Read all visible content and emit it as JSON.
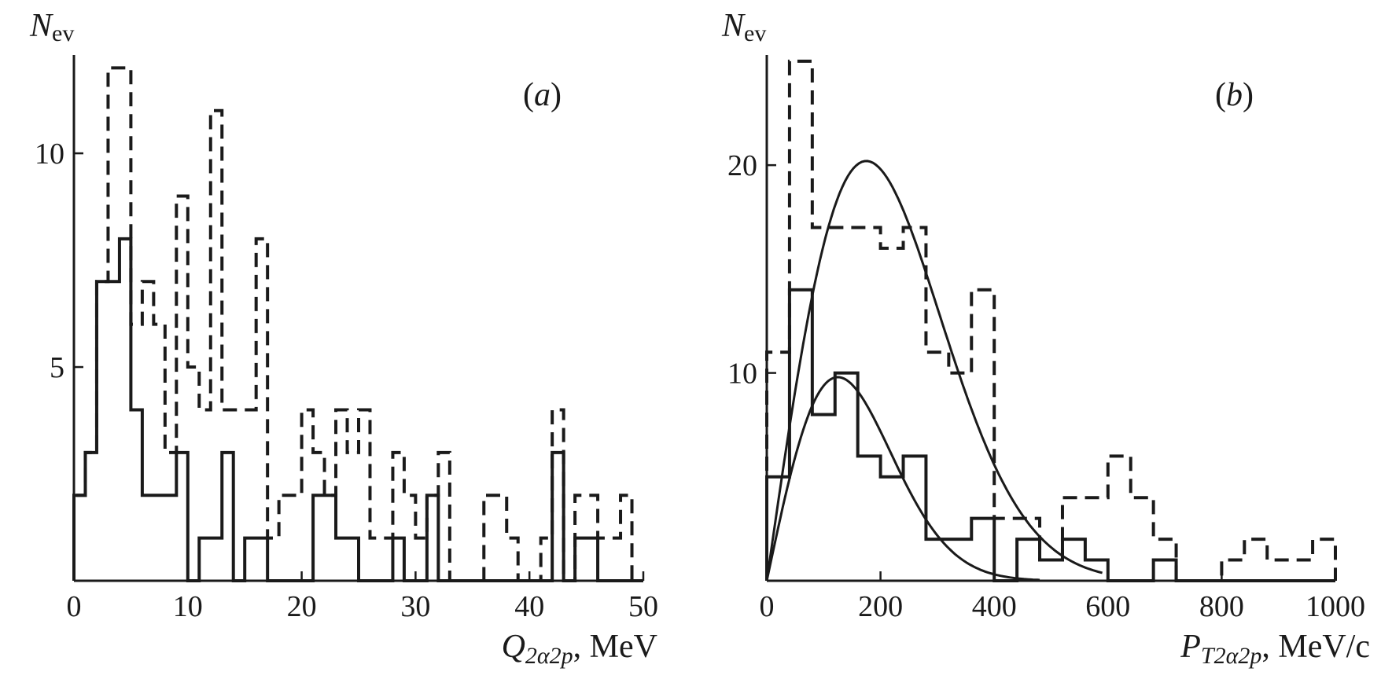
{
  "chart_data": [
    {
      "type": "histogram",
      "panel_label": "(a)",
      "panel_letter": "a",
      "ylabel_main": "N",
      "ylabel_sub": "ev",
      "xlabel_main": "Q",
      "xlabel_sub": "2α2p",
      "xlabel_unit": ", MeV",
      "xlim": [
        0,
        50
      ],
      "ylim": [
        0,
        12.3
      ],
      "xticks": [
        0,
        10,
        20,
        30,
        40,
        50
      ],
      "yticks": [
        5,
        10
      ],
      "bin_width": 1.0,
      "series": [
        {
          "name": "solid",
          "style": "solid",
          "x_start": 0,
          "values": [
            2,
            3,
            7,
            7,
            8,
            4,
            2,
            2,
            2,
            3,
            0,
            1,
            1,
            3,
            0,
            1,
            1,
            0,
            0,
            0,
            0,
            2,
            2,
            1,
            1,
            0,
            0,
            0,
            1,
            0,
            0,
            2,
            0,
            0,
            0,
            0,
            0,
            0,
            0,
            0,
            0,
            0,
            3,
            0,
            1,
            1,
            0,
            0,
            0,
            0
          ]
        },
        {
          "name": "dashed",
          "style": "dashed",
          "x_start": 0,
          "values": [
            2,
            3,
            7,
            12,
            12,
            6,
            7,
            6,
            3,
            9,
            5,
            4,
            11,
            4,
            4,
            4,
            8,
            1,
            2,
            2,
            4,
            3,
            2,
            4,
            3,
            4,
            1,
            1,
            3,
            2,
            1,
            2,
            3,
            0,
            0,
            0,
            2,
            2,
            1,
            0,
            0,
            1,
            4,
            0,
            2,
            2,
            1,
            1,
            2,
            0
          ]
        }
      ]
    },
    {
      "type": "histogram",
      "panel_label": "(b)",
      "panel_letter": "b",
      "ylabel_main": "N",
      "ylabel_sub": "ev",
      "xlabel_main": "P",
      "xlabel_sub": "T2α2p",
      "xlabel_unit": ", MeV/c",
      "xlim": [
        0,
        1000
      ],
      "ylim": [
        0,
        25.3
      ],
      "xticks": [
        0,
        200,
        400,
        600,
        800,
        1000
      ],
      "yticks": [
        10,
        20
      ],
      "bin_width": 40,
      "series": [
        {
          "name": "solid",
          "style": "solid",
          "x_start": 0,
          "values": [
            5,
            14,
            8,
            10,
            6,
            5,
            6,
            2,
            2,
            3,
            0,
            2,
            1,
            2,
            1,
            0,
            0,
            1,
            0,
            0,
            0,
            0,
            0,
            0,
            0
          ]
        },
        {
          "name": "dashed",
          "style": "dashed",
          "x_start": 0,
          "values": [
            11,
            25,
            17,
            17,
            17,
            16,
            17,
            11,
            10,
            14,
            3,
            3,
            1,
            4,
            4,
            6,
            4,
            2,
            0,
            0,
            1,
            2,
            1,
            1,
            2
          ]
        }
      ],
      "fits": [
        {
          "name": "fit-dashed",
          "peak_x": 175,
          "sigma": 175,
          "amplitude": 20.2,
          "x_end": 590
        },
        {
          "name": "fit-solid",
          "peak_x": 125,
          "sigma": 125,
          "amplitude": 9.8,
          "x_end": 480
        }
      ]
    }
  ]
}
